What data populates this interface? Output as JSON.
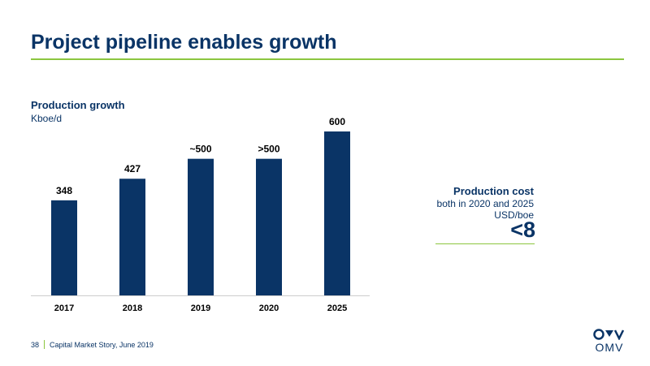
{
  "header": {
    "title": "Project pipeline enables growth"
  },
  "colors": {
    "navy": "#0a3466",
    "green": "#8cc63f"
  },
  "chart_data": {
    "type": "bar",
    "title": "Production growth",
    "ylabel": "Kboe/d",
    "categories": [
      "2017",
      "2018",
      "2019",
      "2020",
      "2025"
    ],
    "values": [
      348,
      427,
      500,
      500,
      600
    ],
    "data_labels": [
      "348",
      "427",
      "~500",
      ">500",
      "600"
    ],
    "ylim": [
      0,
      600
    ],
    "grid": false,
    "legend": "none"
  },
  "cost_panel": {
    "title": "Production cost",
    "subtitle": "both in 2020 and 2025",
    "unit": "USD/boe",
    "value": "<8"
  },
  "footer": {
    "page_number": "38",
    "text": "Capital Market Story, June 2019"
  },
  "logo": {
    "text": "OMV",
    "icon": "omv-logo-icon"
  }
}
